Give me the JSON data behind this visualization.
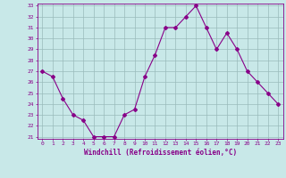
{
  "x": [
    0,
    1,
    2,
    3,
    4,
    5,
    6,
    7,
    8,
    9,
    10,
    11,
    12,
    13,
    14,
    15,
    16,
    17,
    18,
    19,
    20,
    21,
    22,
    23
  ],
  "y": [
    27,
    26.5,
    24.5,
    23,
    22.5,
    21,
    21,
    21,
    23,
    23.5,
    26.5,
    28.5,
    31,
    31,
    32,
    33,
    31,
    29,
    30.5,
    29,
    27,
    26,
    25,
    24
  ],
  "line_color": "#880088",
  "marker": "D",
  "marker_size": 2,
  "bg_color": "#c8e8e8",
  "grid_color": "#99bbbb",
  "xlabel": "Windchill (Refroidissement éolien,°C)",
  "tick_color": "#880088",
  "ylim": [
    21,
    33
  ],
  "yticks": [
    21,
    22,
    23,
    24,
    25,
    26,
    27,
    28,
    29,
    30,
    31,
    32,
    33
  ],
  "xticks": [
    0,
    1,
    2,
    3,
    4,
    5,
    6,
    7,
    8,
    9,
    10,
    11,
    12,
    13,
    14,
    15,
    16,
    17,
    18,
    19,
    20,
    21,
    22,
    23
  ],
  "xlim": [
    -0.5,
    23.5
  ]
}
